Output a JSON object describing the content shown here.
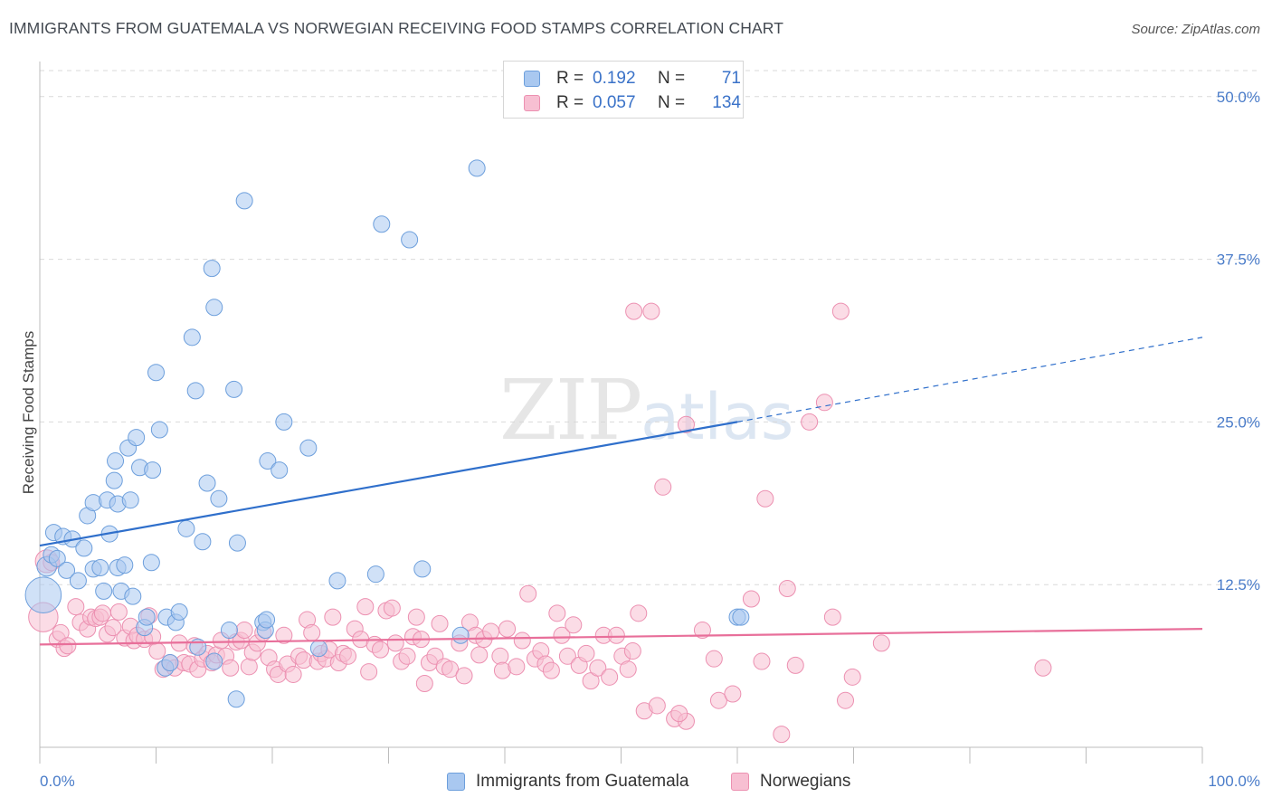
{
  "title": "IMMIGRANTS FROM GUATEMALA VS NORWEGIAN RECEIVING FOOD STAMPS CORRELATION CHART",
  "source": "Source: ZipAtlas.com",
  "watermark": {
    "zip": "ZIP",
    "atlas": "atlas"
  },
  "legend": {
    "r_label": "R =",
    "n_label": "N =",
    "rows": [
      {
        "r": "0.192",
        "n": "71",
        "color": "#6aa3e8"
      },
      {
        "r": "0.057",
        "n": "134",
        "color": "#f08fb0"
      }
    ]
  },
  "colors": {
    "blue_fill": "#a9c8f0",
    "blue_stroke": "#6d9fdc",
    "blue_line": "#2f6fcb",
    "pink_fill": "#f7bfd2",
    "pink_stroke": "#ec90b1",
    "pink_line": "#e86f9a",
    "tick_text": "#4a7cc9"
  },
  "chart_data": {
    "type": "scatter",
    "title": "IMMIGRANTS FROM GUATEMALA VS NORWEGIAN RECEIVING FOOD STAMPS CORRELATION CHART",
    "xlabel": "",
    "ylabel": "Receiving Food Stamps",
    "xlim": [
      0,
      100
    ],
    "ylim": [
      0,
      52
    ],
    "x_tick_labels": [
      "0.0%",
      "100.0%"
    ],
    "y_ticks": [
      12.5,
      25.0,
      37.5,
      50.0
    ],
    "y_tick_labels": [
      "12.5%",
      "25.0%",
      "37.5%",
      "50.0%"
    ],
    "grid": "horizontal dashed",
    "legend_position": "top-center",
    "series": [
      {
        "name": "Immigrants from Guatemala",
        "R": 0.192,
        "N": 71,
        "trend": {
          "x0": 0,
          "y0": 15.5,
          "x1": 60,
          "y1": 25.0,
          "dashed_to_x": 100,
          "dashed_to_y": 31.5
        },
        "points": [
          [
            0.3,
            11.7,
            22
          ],
          [
            0.6,
            13.9,
            12
          ],
          [
            1.0,
            14.8,
            10
          ],
          [
            1.2,
            16.5,
            10
          ],
          [
            1.5,
            14.5,
            10
          ],
          [
            2.0,
            16.2,
            10
          ],
          [
            2.3,
            13.6,
            10
          ],
          [
            2.8,
            16.0,
            10
          ],
          [
            3.3,
            12.8,
            10
          ],
          [
            3.8,
            15.3,
            10
          ],
          [
            4.1,
            17.8,
            10
          ],
          [
            4.6,
            13.7,
            10
          ],
          [
            4.6,
            18.8,
            10
          ],
          [
            5.2,
            13.8,
            10
          ],
          [
            5.5,
            12.0,
            10
          ],
          [
            5.8,
            19.0,
            10
          ],
          [
            6.0,
            16.4,
            10
          ],
          [
            6.4,
            20.5,
            10
          ],
          [
            6.5,
            22.0,
            10
          ],
          [
            6.7,
            13.8,
            10
          ],
          [
            6.7,
            18.7,
            10
          ],
          [
            7.0,
            12.0,
            10
          ],
          [
            7.3,
            14.0,
            10
          ],
          [
            7.6,
            23.0,
            10
          ],
          [
            7.8,
            19.0,
            10
          ],
          [
            8.0,
            11.6,
            10
          ],
          [
            8.3,
            23.8,
            10
          ],
          [
            8.6,
            21.5,
            10
          ],
          [
            9.0,
            9.2,
            10
          ],
          [
            9.2,
            10.0,
            10
          ],
          [
            9.7,
            21.3,
            10
          ],
          [
            9.6,
            14.2,
            10
          ],
          [
            10.0,
            28.8,
            10
          ],
          [
            10.3,
            24.4,
            10
          ],
          [
            10.8,
            6.1,
            10
          ],
          [
            10.9,
            10.0,
            10
          ],
          [
            11.2,
            6.5,
            10
          ],
          [
            11.7,
            9.6,
            10
          ],
          [
            12.0,
            10.4,
            10
          ],
          [
            12.6,
            16.8,
            10
          ],
          [
            13.1,
            31.5,
            10
          ],
          [
            13.4,
            27.4,
            10
          ],
          [
            13.6,
            7.7,
            10
          ],
          [
            14.0,
            15.8,
            10
          ],
          [
            14.4,
            20.3,
            10
          ],
          [
            14.8,
            36.8,
            10
          ],
          [
            15.0,
            33.8,
            10
          ],
          [
            15.0,
            6.6,
            10
          ],
          [
            15.4,
            19.1,
            10
          ],
          [
            16.3,
            9.0,
            10
          ],
          [
            16.7,
            27.5,
            10
          ],
          [
            16.9,
            3.7,
            10
          ],
          [
            17.0,
            15.7,
            10
          ],
          [
            17.6,
            42.0,
            10
          ],
          [
            19.2,
            9.6,
            10
          ],
          [
            19.4,
            9.0,
            10
          ],
          [
            19.5,
            9.8,
            10
          ],
          [
            19.6,
            22.0,
            10
          ],
          [
            20.6,
            21.3,
            10
          ],
          [
            21.0,
            25.0,
            10
          ],
          [
            23.1,
            23.0,
            10
          ],
          [
            24.0,
            7.6,
            10
          ],
          [
            25.6,
            12.8,
            10
          ],
          [
            28.9,
            13.3,
            10
          ],
          [
            29.4,
            40.2,
            10
          ],
          [
            31.8,
            39.0,
            10
          ],
          [
            32.9,
            13.7,
            10
          ],
          [
            36.2,
            8.6,
            10
          ],
          [
            37.6,
            44.5,
            10
          ],
          [
            60.0,
            10.0,
            10
          ],
          [
            60.3,
            10.0,
            10
          ]
        ]
      },
      {
        "name": "Norwegians",
        "R": 0.057,
        "N": 134,
        "trend": {
          "x0": 0,
          "y0": 7.9,
          "x1": 100,
          "y1": 9.1
        },
        "points": [
          [
            0.3,
            10.0,
            18
          ],
          [
            0.6,
            14.3,
            14
          ],
          [
            1.0,
            14.2,
            10
          ],
          [
            1.5,
            8.3,
            10
          ],
          [
            1.8,
            8.8,
            10
          ],
          [
            2.1,
            7.6,
            10
          ],
          [
            2.4,
            7.8,
            10
          ],
          [
            3.1,
            10.8,
            10
          ],
          [
            3.5,
            9.6,
            10
          ],
          [
            4.1,
            9.1,
            10
          ],
          [
            4.4,
            10.0,
            10
          ],
          [
            4.8,
            9.9,
            10
          ],
          [
            5.2,
            10.0,
            10
          ],
          [
            5.4,
            10.3,
            10
          ],
          [
            5.8,
            8.7,
            10
          ],
          [
            6.3,
            9.2,
            10
          ],
          [
            6.8,
            10.4,
            10
          ],
          [
            7.3,
            8.4,
            10
          ],
          [
            7.8,
            9.3,
            10
          ],
          [
            8.1,
            8.2,
            10
          ],
          [
            8.4,
            8.6,
            10
          ],
          [
            9.0,
            8.3,
            10
          ],
          [
            9.4,
            10.1,
            10
          ],
          [
            9.7,
            8.5,
            10
          ],
          [
            10.1,
            7.4,
            10
          ],
          [
            10.6,
            6.0,
            10
          ],
          [
            11.2,
            6.5,
            10
          ],
          [
            11.6,
            6.1,
            10
          ],
          [
            12.0,
            8.0,
            10
          ],
          [
            12.4,
            6.5,
            10
          ],
          [
            12.9,
            6.4,
            10
          ],
          [
            13.3,
            7.8,
            10
          ],
          [
            13.6,
            6.0,
            10
          ],
          [
            14.0,
            6.8,
            10
          ],
          [
            14.4,
            7.2,
            10
          ],
          [
            14.8,
            6.5,
            10
          ],
          [
            15.2,
            7.1,
            10
          ],
          [
            15.6,
            8.2,
            10
          ],
          [
            16.0,
            7.0,
            10
          ],
          [
            16.4,
            6.1,
            10
          ],
          [
            16.9,
            8.1,
            10
          ],
          [
            17.3,
            8.2,
            10
          ],
          [
            17.6,
            9.0,
            10
          ],
          [
            18.0,
            6.2,
            10
          ],
          [
            18.3,
            7.3,
            10
          ],
          [
            18.7,
            8.0,
            10
          ],
          [
            19.2,
            8.8,
            10
          ],
          [
            19.7,
            6.9,
            10
          ],
          [
            20.2,
            6.0,
            10
          ],
          [
            20.5,
            5.6,
            10
          ],
          [
            21.0,
            8.6,
            10
          ],
          [
            21.3,
            6.4,
            10
          ],
          [
            21.8,
            5.6,
            10
          ],
          [
            22.3,
            7.0,
            10
          ],
          [
            22.7,
            6.7,
            10
          ],
          [
            23.0,
            9.8,
            10
          ],
          [
            23.4,
            8.8,
            10
          ],
          [
            23.9,
            6.6,
            10
          ],
          [
            24.2,
            7.2,
            10
          ],
          [
            24.6,
            6.8,
            10
          ],
          [
            24.9,
            7.5,
            10
          ],
          [
            25.2,
            10.0,
            10
          ],
          [
            25.7,
            6.5,
            10
          ],
          [
            26.1,
            7.2,
            10
          ],
          [
            26.5,
            7.0,
            10
          ],
          [
            27.1,
            9.1,
            10
          ],
          [
            27.6,
            8.3,
            10
          ],
          [
            28.0,
            10.8,
            10
          ],
          [
            28.3,
            5.8,
            10
          ],
          [
            28.8,
            7.9,
            10
          ],
          [
            29.3,
            7.5,
            10
          ],
          [
            29.8,
            10.5,
            10
          ],
          [
            30.3,
            10.7,
            10
          ],
          [
            30.6,
            8.0,
            10
          ],
          [
            31.1,
            6.6,
            10
          ],
          [
            31.6,
            7.0,
            10
          ],
          [
            32.1,
            8.5,
            10
          ],
          [
            32.4,
            10.0,
            10
          ],
          [
            32.8,
            8.3,
            10
          ],
          [
            33.1,
            4.9,
            10
          ],
          [
            33.5,
            6.5,
            10
          ],
          [
            34.0,
            7.0,
            10
          ],
          [
            34.4,
            9.5,
            10
          ],
          [
            34.8,
            6.2,
            10
          ],
          [
            35.3,
            6.0,
            10
          ],
          [
            36.1,
            8.0,
            10
          ],
          [
            36.5,
            5.5,
            10
          ],
          [
            37.0,
            9.6,
            10
          ],
          [
            37.5,
            8.6,
            10
          ],
          [
            37.8,
            7.1,
            10
          ],
          [
            38.2,
            8.3,
            10
          ],
          [
            38.8,
            8.9,
            10
          ],
          [
            39.6,
            7.0,
            10
          ],
          [
            39.8,
            5.9,
            10
          ],
          [
            40.2,
            9.1,
            10
          ],
          [
            41.0,
            6.2,
            10
          ],
          [
            41.5,
            8.2,
            10
          ],
          [
            42.0,
            11.8,
            10
          ],
          [
            42.6,
            6.8,
            10
          ],
          [
            43.1,
            7.4,
            10
          ],
          [
            43.5,
            6.4,
            10
          ],
          [
            44.0,
            5.9,
            10
          ],
          [
            44.5,
            10.3,
            10
          ],
          [
            44.9,
            8.6,
            10
          ],
          [
            45.4,
            7.0,
            10
          ],
          [
            45.9,
            9.4,
            10
          ],
          [
            46.4,
            6.3,
            10
          ],
          [
            47.0,
            7.2,
            10
          ],
          [
            47.4,
            5.1,
            10
          ],
          [
            48.0,
            6.1,
            10
          ],
          [
            48.5,
            8.6,
            10
          ],
          [
            49.0,
            5.4,
            10
          ],
          [
            49.6,
            8.6,
            10
          ],
          [
            50.1,
            7.0,
            10
          ],
          [
            50.6,
            6.0,
            10
          ],
          [
            51.0,
            7.4,
            10
          ],
          [
            51.5,
            10.3,
            10
          ],
          [
            52.0,
            2.8,
            10
          ],
          [
            53.1,
            3.2,
            10
          ],
          [
            54.6,
            2.2,
            10
          ],
          [
            55.6,
            2.0,
            10
          ],
          [
            55.0,
            2.6,
            10
          ],
          [
            55.6,
            24.8,
            10
          ],
          [
            57.0,
            9.0,
            10
          ],
          [
            58.0,
            6.8,
            10
          ],
          [
            58.4,
            3.6,
            10
          ],
          [
            59.6,
            4.1,
            10
          ],
          [
            61.2,
            11.4,
            10
          ],
          [
            62.1,
            6.6,
            10
          ],
          [
            63.8,
            1.0,
            10
          ],
          [
            64.3,
            12.2,
            10
          ],
          [
            65.0,
            6.3,
            10
          ],
          [
            66.2,
            25.0,
            10
          ],
          [
            67.5,
            26.5,
            10
          ],
          [
            68.2,
            10.0,
            10
          ],
          [
            69.3,
            3.6,
            10
          ],
          [
            69.9,
            5.4,
            10
          ],
          [
            72.4,
            8.0,
            10
          ],
          [
            86.3,
            6.1,
            10
          ],
          [
            68.9,
            33.5,
            10
          ],
          [
            52.6,
            33.5,
            10
          ],
          [
            53.6,
            20.0,
            10
          ],
          [
            62.4,
            19.1,
            10
          ],
          [
            51.1,
            33.5,
            10
          ]
        ]
      }
    ]
  },
  "bottom_legend": [
    "Immigrants from Guatemala",
    "Norwegians"
  ]
}
